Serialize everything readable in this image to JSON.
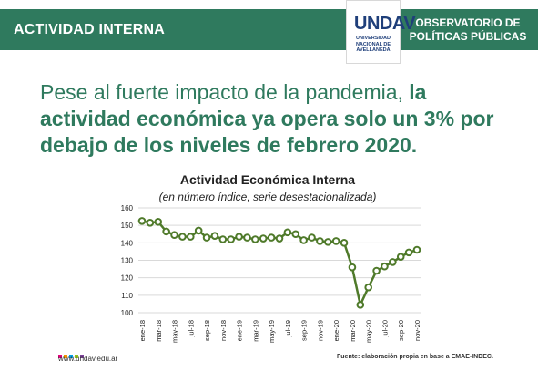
{
  "header": {
    "left_title": "ACTIVIDAD INTERNA",
    "logo_text": "UNDAV",
    "logo_subtitle": "UNIVERSIDAD NACIONAL DE AVELLANEDA",
    "right_title_line1": "OBSERVATORIO DE",
    "right_title_line2": "POLÍTICAS PÚBLICAS"
  },
  "headline": {
    "light": "Pese al fuerte impacto de la pandemia,",
    "bold": "la actividad económica ya opera solo un 3% por debajo de los niveles de febrero 2020."
  },
  "footer": {
    "website": "www.undav.edu.ar",
    "source": "Fuente: elaboración propia en base a EMAE-INDEC."
  },
  "colors": {
    "brand_green": "#2f7a5e",
    "line_green": "#4f7a2a",
    "logo_blue": "#1f3f7a"
  },
  "chart_data": {
    "type": "line",
    "title": "Actividad Económica Interna",
    "subtitle": "(en número índice, serie desestacionalizada)",
    "xlabel": "",
    "ylabel": "",
    "ylim": [
      100,
      160
    ],
    "yticks": [
      100,
      110,
      120,
      130,
      140,
      150,
      160
    ],
    "grid": true,
    "x": [
      "ene-18",
      "feb-18",
      "mar-18",
      "abr-18",
      "may-18",
      "jun-18",
      "jul-18",
      "ago-18",
      "sep-18",
      "oct-18",
      "nov-18",
      "dic-18",
      "ene-19",
      "feb-19",
      "mar-19",
      "abr-19",
      "may-19",
      "jun-19",
      "jul-19",
      "ago-19",
      "sep-19",
      "oct-19",
      "nov-19",
      "dic-19",
      "ene-20",
      "feb-20",
      "mar-20",
      "abr-20",
      "may-20",
      "jun-20",
      "jul-20",
      "ago-20",
      "sep-20",
      "oct-20",
      "nov-20"
    ],
    "xtick_labels": [
      "ene-18",
      "mar-18",
      "may-18",
      "jul-18",
      "sep-18",
      "nov-18",
      "ene-19",
      "mar-19",
      "may-19",
      "jul-19",
      "sep-19",
      "nov-19",
      "ene-20",
      "mar-20",
      "may-20",
      "jul-20",
      "sep-20",
      "nov-20"
    ],
    "values": [
      152.5,
      151.5,
      152,
      146.5,
      144.5,
      143.5,
      143.5,
      147,
      143,
      144,
      142,
      142,
      143.5,
      143,
      142,
      142.5,
      143,
      142.5,
      146,
      145,
      141.5,
      143,
      141,
      140.5,
      141,
      140,
      126,
      104.5,
      114.5,
      124,
      126.5,
      129,
      132,
      134.5,
      136
    ]
  }
}
